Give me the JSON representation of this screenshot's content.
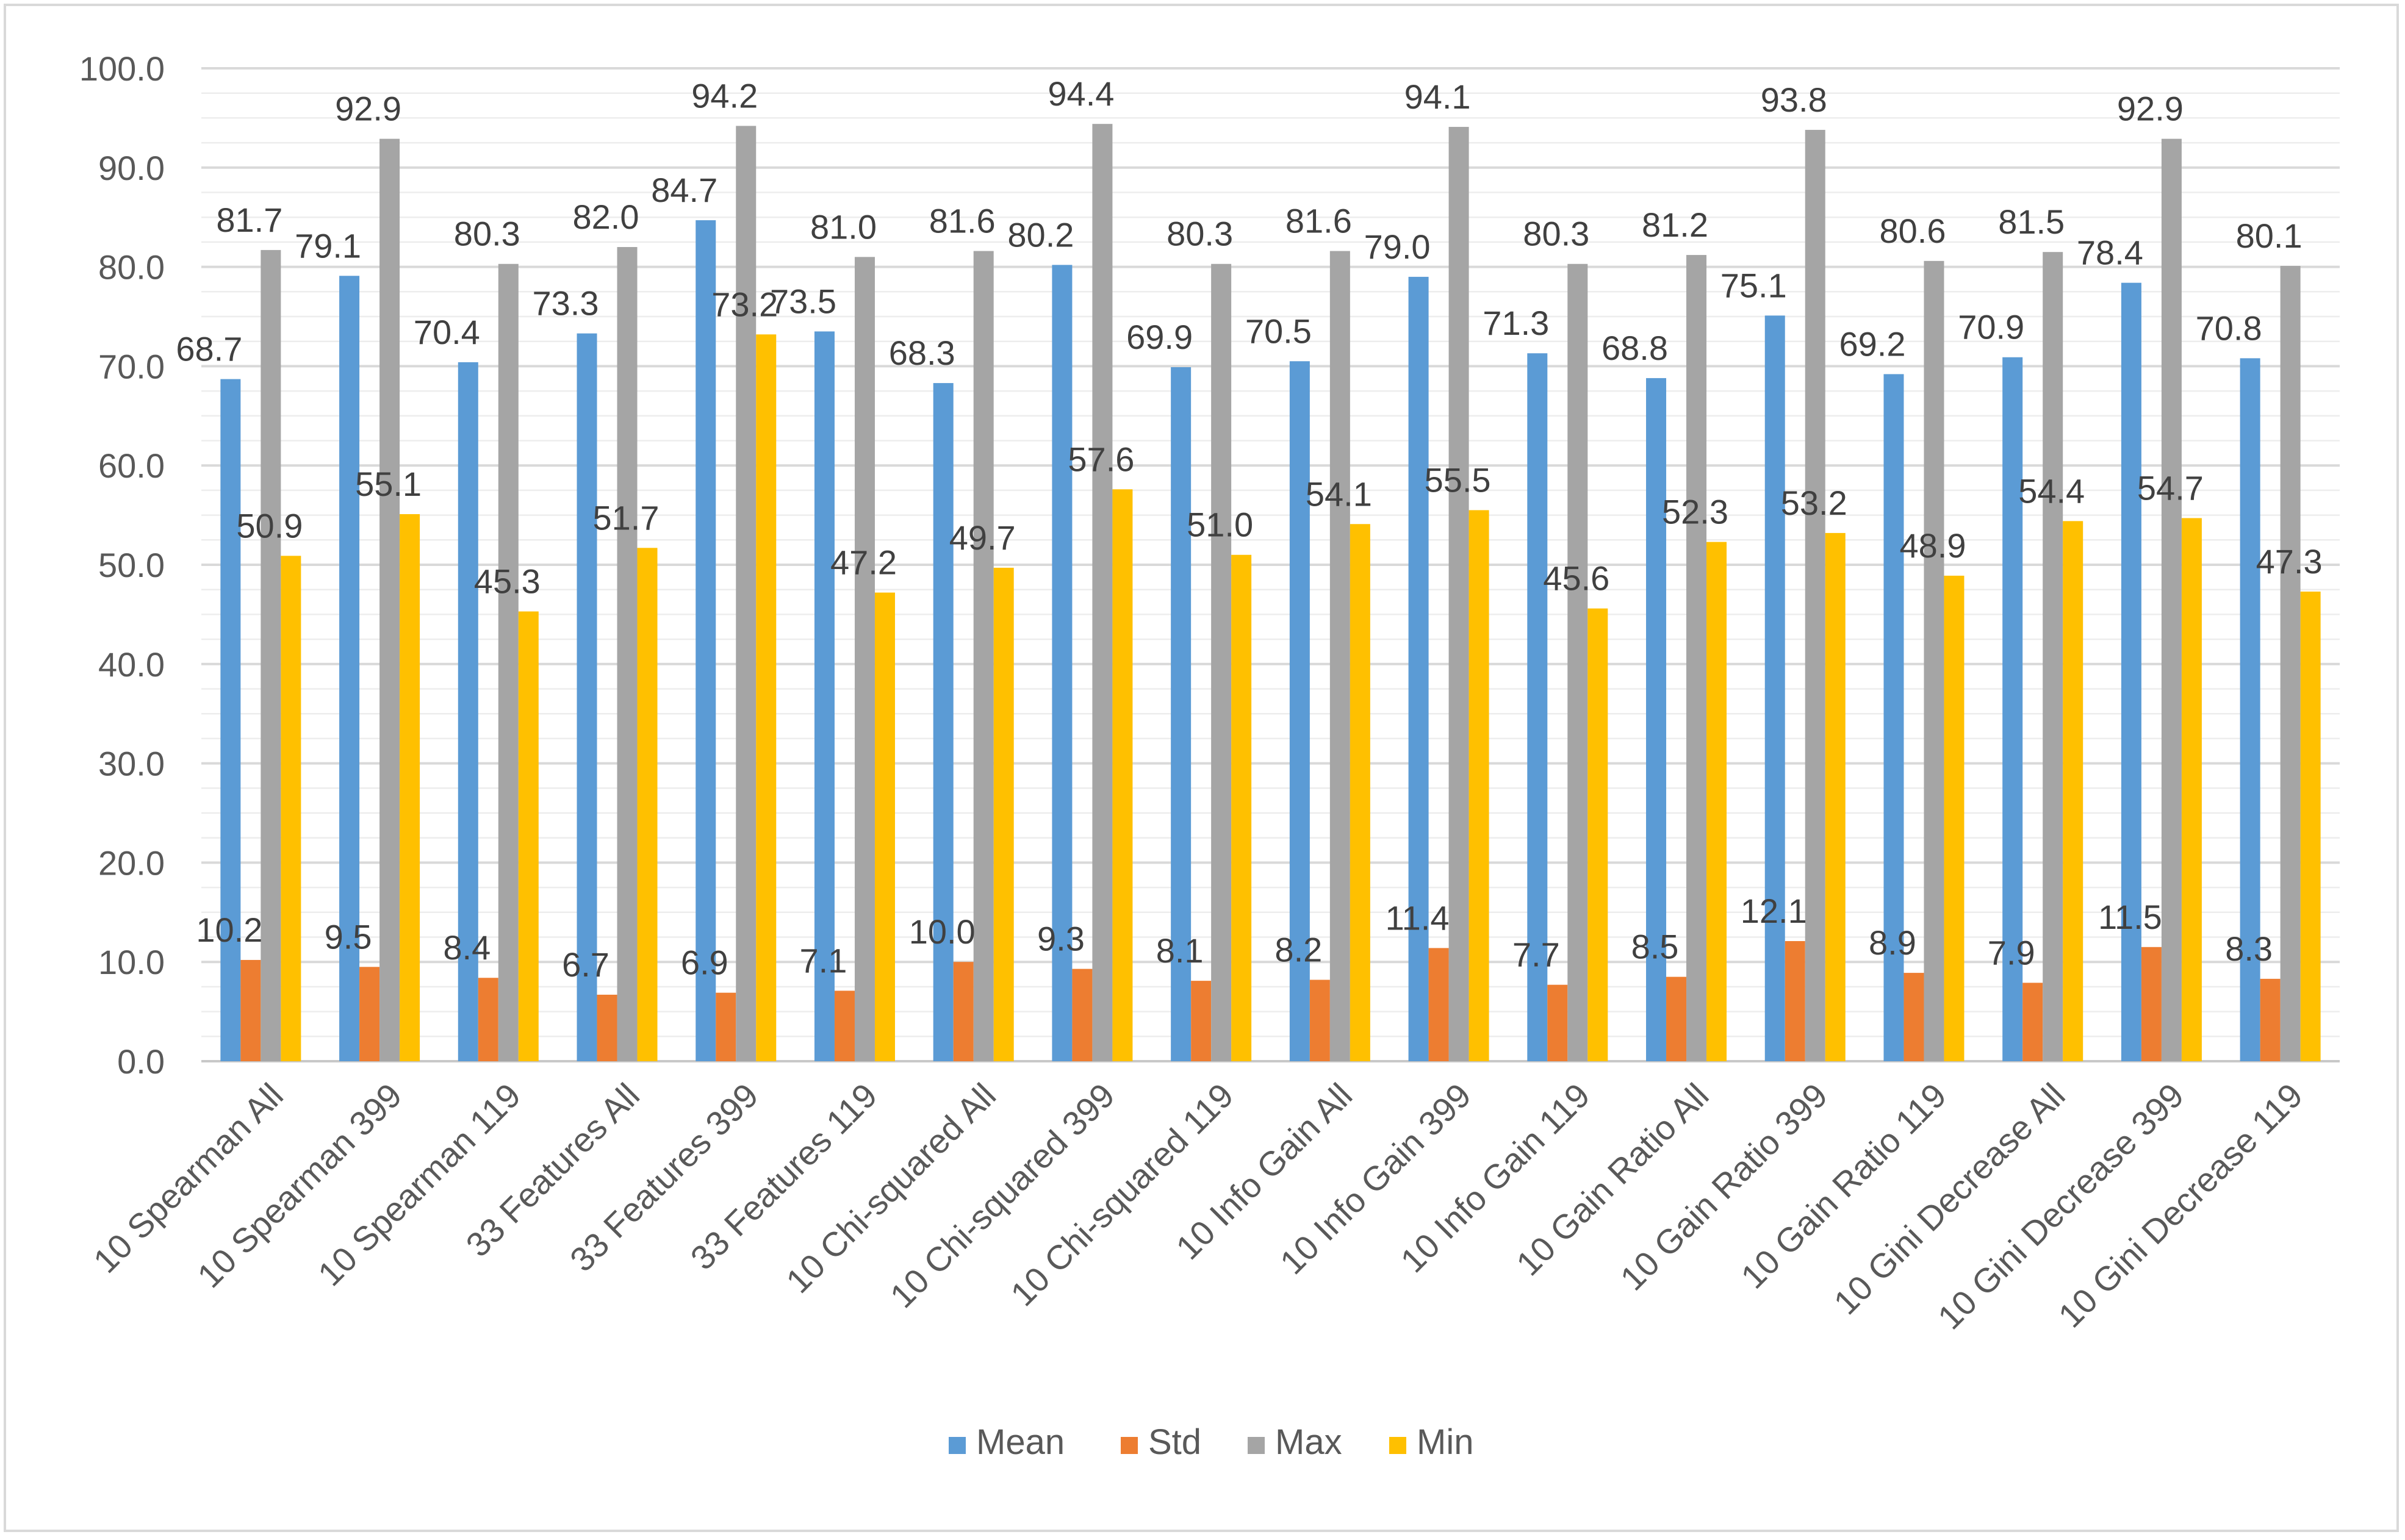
{
  "chart_data": {
    "type": "bar",
    "categories": [
      "10 Spearman All",
      "10 Spearman 399",
      "10 Spearman 119",
      "33 Features All",
      "33 Features 399",
      "33 Features 119",
      "10 Chi-squared All",
      "10 Chi-squared 399",
      "10 Chi-squared 119",
      "10 Info Gain All",
      "10 Info Gain 399",
      "10 Info Gain 119",
      "10 Gain Ratio All",
      "10 Gain Ratio 399",
      "10 Gain Ratio 119",
      "10 Gini Decrease All",
      "10 Gini Decrease 399",
      "10 Gini Decrease 119"
    ],
    "series": [
      {
        "name": "Mean",
        "color": "#5B9BD5",
        "values": [
          68.7,
          79.1,
          70.4,
          73.3,
          84.7,
          73.5,
          68.3,
          80.2,
          69.9,
          70.5,
          79.0,
          71.3,
          68.8,
          75.1,
          69.2,
          70.9,
          78.4,
          70.8
        ]
      },
      {
        "name": "Std",
        "color": "#ED7D31",
        "values": [
          10.2,
          9.5,
          8.4,
          6.7,
          6.9,
          7.1,
          10.0,
          9.3,
          8.1,
          8.2,
          11.4,
          7.7,
          8.5,
          12.1,
          8.9,
          7.9,
          11.5,
          8.3
        ]
      },
      {
        "name": "Max",
        "color": "#A5A5A5",
        "values": [
          81.7,
          92.9,
          80.3,
          82.0,
          94.2,
          81.0,
          81.6,
          94.4,
          80.3,
          81.6,
          94.1,
          80.3,
          81.2,
          93.8,
          80.6,
          81.5,
          92.9,
          80.1
        ]
      },
      {
        "name": "Min",
        "color": "#FFC000",
        "values": [
          50.9,
          55.1,
          45.3,
          51.7,
          73.2,
          47.2,
          49.7,
          57.6,
          51.0,
          54.1,
          55.5,
          45.6,
          52.3,
          53.2,
          48.9,
          54.4,
          54.7,
          47.3
        ]
      }
    ],
    "ylim": [
      0,
      100
    ],
    "yticks": [
      "0.0",
      "10.0",
      "20.0",
      "30.0",
      "40.0",
      "50.0",
      "60.0",
      "70.0",
      "80.0",
      "90.0",
      "100.0"
    ],
    "grid": true,
    "legend": "bottom",
    "title": "",
    "xlabel": "",
    "ylabel": ""
  }
}
